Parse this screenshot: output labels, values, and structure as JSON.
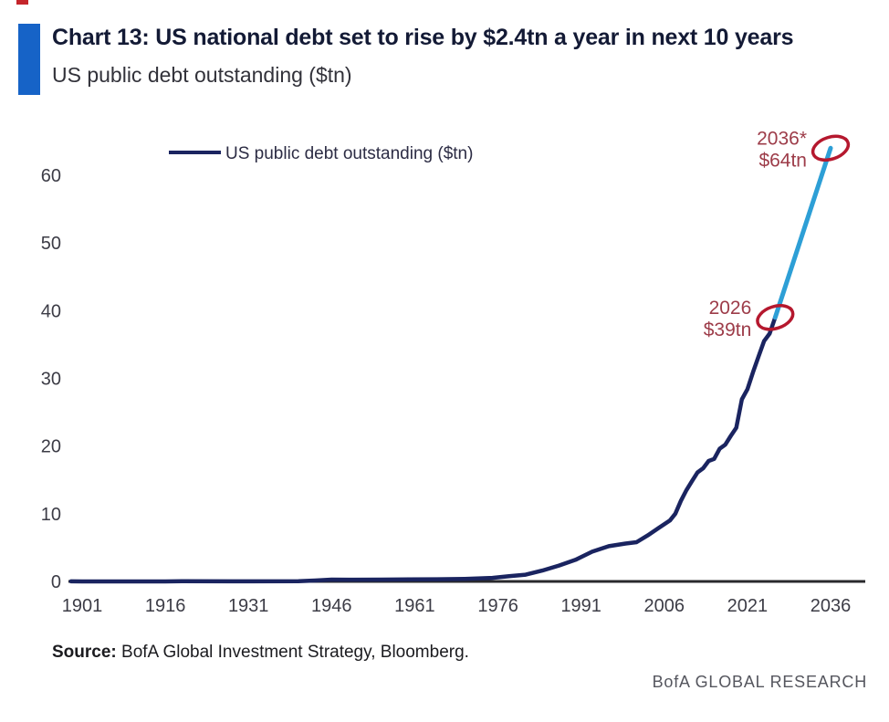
{
  "header": {
    "accent_color": "#1663c7",
    "corner_mark_color": "#c4252b"
  },
  "chart_data": {
    "type": "line",
    "title": "Chart 13: US national debt set to rise by $2.4tn a year in next 10 years",
    "subtitle": "US public debt outstanding ($tn)",
    "xlabel": "",
    "ylabel": "",
    "grid": false,
    "xlim": [
      1898,
      2042
    ],
    "ylim": [
      0,
      66
    ],
    "x_ticks": [
      "1901",
      "1916",
      "1931",
      "1946",
      "1961",
      "1976",
      "1991",
      "2006",
      "2021",
      "2036"
    ],
    "y_ticks": [
      "0",
      "10",
      "20",
      "30",
      "40",
      "50",
      "60"
    ],
    "legend": {
      "position": "top-left-inside",
      "entries": [
        "US public debt outstanding ($tn)"
      ]
    },
    "axis_color": "#29292c",
    "tick_color": "#3c3c46",
    "annotation_color": "#9d3c49",
    "circle_color": "#b5182e",
    "series": [
      {
        "name": "US public debt outstanding ($tn) - historical",
        "color": "#1a2460",
        "points": [
          [
            1899,
            0.02
          ],
          [
            1901,
            0.001
          ],
          [
            1910,
            0.003
          ],
          [
            1916,
            0.004
          ],
          [
            1919,
            0.027
          ],
          [
            1931,
            0.017
          ],
          [
            1940,
            0.043
          ],
          [
            1943,
            0.14
          ],
          [
            1946,
            0.27
          ],
          [
            1950,
            0.26
          ],
          [
            1955,
            0.27
          ],
          [
            1960,
            0.29
          ],
          [
            1965,
            0.32
          ],
          [
            1970,
            0.37
          ],
          [
            1975,
            0.53
          ],
          [
            1978,
            0.77
          ],
          [
            1981,
            1.0
          ],
          [
            1984,
            1.6
          ],
          [
            1987,
            2.35
          ],
          [
            1990,
            3.2
          ],
          [
            1993,
            4.4
          ],
          [
            1996,
            5.2
          ],
          [
            1999,
            5.6
          ],
          [
            2001,
            5.8
          ],
          [
            2003,
            6.8
          ],
          [
            2005,
            7.9
          ],
          [
            2007,
            9.0
          ],
          [
            2008,
            10.0
          ],
          [
            2009,
            11.9
          ],
          [
            2010,
            13.5
          ],
          [
            2011,
            14.8
          ],
          [
            2012,
            16.1
          ],
          [
            2013,
            16.7
          ],
          [
            2014,
            17.8
          ],
          [
            2015,
            18.1
          ],
          [
            2016,
            19.6
          ],
          [
            2017,
            20.2
          ],
          [
            2018,
            21.5
          ],
          [
            2019,
            22.7
          ],
          [
            2020,
            26.9
          ],
          [
            2021,
            28.4
          ],
          [
            2022,
            30.9
          ],
          [
            2023,
            33.2
          ],
          [
            2024,
            35.5
          ],
          [
            2025,
            36.6
          ],
          [
            2026,
            39.0
          ]
        ]
      },
      {
        "name": "US public debt outstanding ($tn) - projection",
        "color": "#2d9fd6",
        "points": [
          [
            2026,
            39.0
          ],
          [
            2036,
            64.0
          ]
        ]
      }
    ],
    "annotations": [
      {
        "year_label": "2026",
        "value_label": "$39tn",
        "x": 2026,
        "y": 39
      },
      {
        "year_label": "2036*",
        "value_label": "$64tn",
        "x": 2036,
        "y": 64
      }
    ]
  },
  "source": {
    "label": "Source:",
    "text": " BofA Global Investment Strategy, Bloomberg."
  },
  "branding": "BofA GLOBAL RESEARCH"
}
